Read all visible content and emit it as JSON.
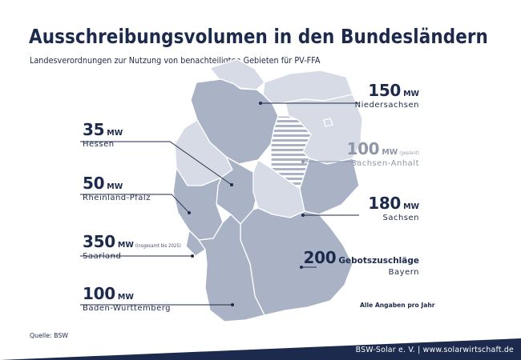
{
  "title": "Ausschreibungsvolumen in den Bundesländern",
  "subtitle": "Landesverordnungen zur Nutzung von benachteiligten Gebieten für PV-FFA",
  "colors": {
    "state_dark": "#aab3c6",
    "state_light": "#d6dbe5",
    "border": "#ffffff",
    "leader": "#1f2a48",
    "navy": "#1c2a4d"
  },
  "labels": {
    "niedersachsen": {
      "value": "150",
      "unit": "MW",
      "state": "Niedersachsen"
    },
    "sachsen_anhalt": {
      "value": "100",
      "unit": "MW",
      "note": "(geplant)",
      "state": "Sachsen-Anhalt"
    },
    "sachsen": {
      "value": "180",
      "unit": "MW",
      "state": "Sachsen"
    },
    "bayern": {
      "value": "200",
      "unit": "Gebotszuschläge",
      "state": "Bayern"
    },
    "hessen": {
      "value": "35",
      "unit": "MW",
      "state": "Hessen"
    },
    "rheinland_pfalz": {
      "value": "50",
      "unit": "MW",
      "state": "Rheinland-Pfalz"
    },
    "saarland": {
      "value": "350",
      "unit": "MW",
      "note": "(insgesamt bis 2025)",
      "state": "Saarland"
    },
    "baden_wuerttemberg": {
      "value": "100",
      "unit": "MW",
      "state": "Baden-Württemberg"
    }
  },
  "footnote": "Alle Angaben pro Jahr",
  "source": "Quelle: BSW",
  "footer": "BSW-Solar e. V.  |  www.solarwirtschaft.de"
}
